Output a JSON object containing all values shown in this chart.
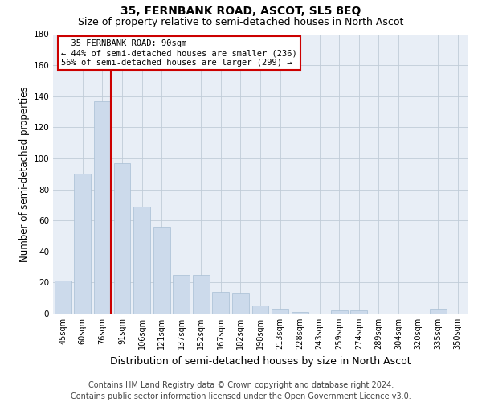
{
  "title": "35, FERNBANK ROAD, ASCOT, SL5 8EQ",
  "subtitle": "Size of property relative to semi-detached houses in North Ascot",
  "xlabel": "Distribution of semi-detached houses by size in North Ascot",
  "ylabel": "Number of semi-detached properties",
  "bins": [
    "45sqm",
    "60sqm",
    "76sqm",
    "91sqm",
    "106sqm",
    "121sqm",
    "137sqm",
    "152sqm",
    "167sqm",
    "182sqm",
    "198sqm",
    "213sqm",
    "228sqm",
    "243sqm",
    "259sqm",
    "274sqm",
    "289sqm",
    "304sqm",
    "320sqm",
    "335sqm",
    "350sqm"
  ],
  "values": [
    21,
    90,
    137,
    97,
    69,
    56,
    25,
    25,
    14,
    13,
    5,
    3,
    1,
    0,
    2,
    2,
    0,
    0,
    0,
    3,
    0
  ],
  "bar_color": "#ccdaeb",
  "bar_edgecolor": "#a8bfd4",
  "annotation_text": "  35 FERNBANK ROAD: 90sqm\n← 44% of semi-detached houses are smaller (236)\n56% of semi-detached houses are larger (299) →",
  "annotation_box_color": "#cc0000",
  "vline_color": "#cc0000",
  "ylim": [
    0,
    180
  ],
  "yticks": [
    0,
    20,
    40,
    60,
    80,
    100,
    120,
    140,
    160,
    180
  ],
  "grid_color": "#c0ccd8",
  "bg_color": "#e8eef6",
  "footer": "Contains HM Land Registry data © Crown copyright and database right 2024.\nContains public sector information licensed under the Open Government Licence v3.0.",
  "title_fontsize": 10,
  "subtitle_fontsize": 9,
  "xlabel_fontsize": 9,
  "ylabel_fontsize": 8.5,
  "footer_fontsize": 7,
  "annotation_fontsize": 7.5,
  "tick_fontsize": 7
}
